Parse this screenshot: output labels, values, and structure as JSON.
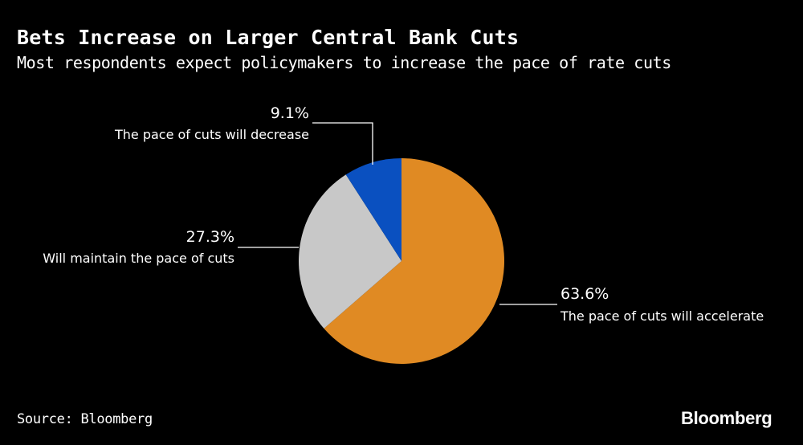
{
  "header": {
    "title": "Bets Increase on Larger Central Bank Cuts",
    "subtitle": "Most respondents expect policymakers to increase the pace of rate cuts"
  },
  "footer": {
    "source": "Source: Bloomberg",
    "brand": "Bloomberg"
  },
  "chart_data": {
    "type": "pie",
    "title": "Bets Increase on Larger Central Bank Cuts",
    "subtitle": "Most respondents expect policymakers to increase the pace of rate cuts",
    "slices": [
      {
        "label": "The pace of cuts will accelerate",
        "value": 63.6,
        "value_label": "63.6%",
        "color": "#e08a23"
      },
      {
        "label": "Will maintain the pace of cuts",
        "value": 27.3,
        "value_label": "27.3%",
        "color": "#c8c8c8"
      },
      {
        "label": "The pace of cuts will decrease",
        "value": 9.1,
        "value_label": "9.1%",
        "color": "#0a50c0"
      }
    ]
  }
}
